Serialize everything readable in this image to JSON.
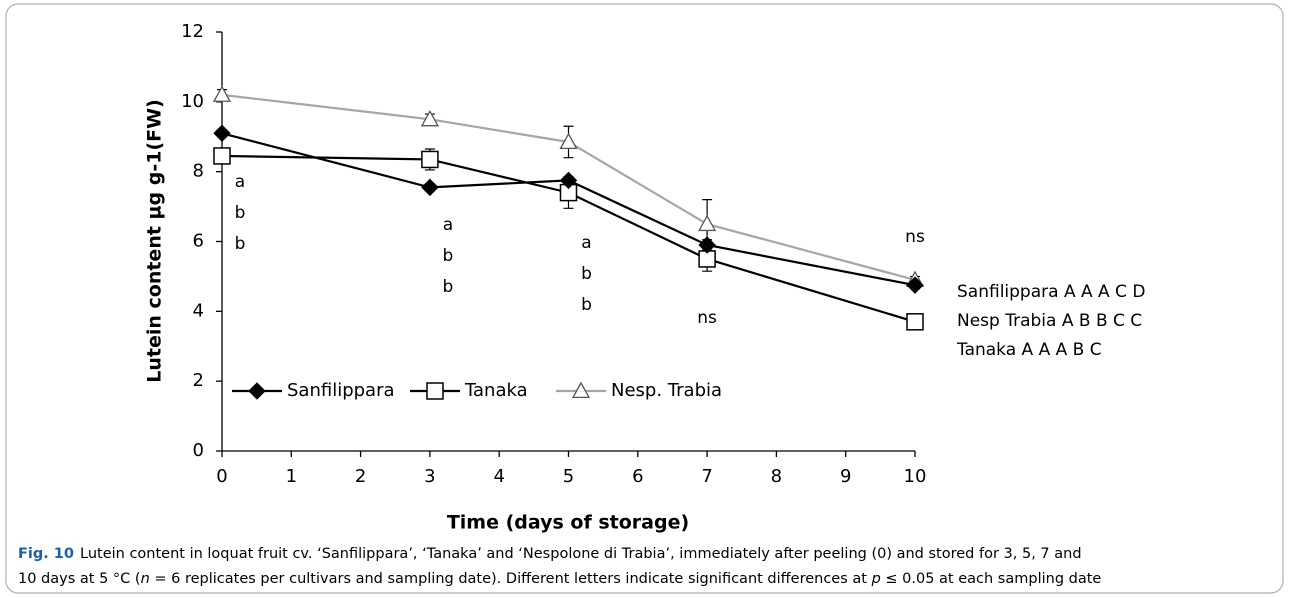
{
  "chart_data": {
    "type": "line",
    "x_label": "Time (days of storage)",
    "y_label": "Lutein content µg g-1(FW)",
    "x": [
      0,
      3,
      5,
      7,
      10
    ],
    "xlim": [
      0,
      10
    ],
    "xticks": [
      0,
      1,
      2,
      3,
      4,
      5,
      6,
      7,
      8,
      9,
      10
    ],
    "ylim": [
      0,
      12
    ],
    "yticks": [
      0,
      2,
      4,
      6,
      8,
      10,
      12
    ],
    "legend": "lower left",
    "series": [
      {
        "name": "Sanfilippara",
        "color": "#000000",
        "marker": "diamond",
        "values": [
          9.1,
          7.55,
          7.75,
          5.9,
          4.75
        ],
        "errors": [
          0.1,
          0.1,
          0.1,
          0.15,
          0.1
        ]
      },
      {
        "name": "Tanaka",
        "color": "#000000",
        "marker": "square",
        "values": [
          8.45,
          8.35,
          7.4,
          5.5,
          3.7
        ],
        "errors": [
          0.15,
          0.3,
          0.45,
          0.35,
          0.1
        ]
      },
      {
        "name": "Nesp. Trabia",
        "color": "#a6a6a6",
        "marker": "triangle",
        "values": [
          10.2,
          9.5,
          8.85,
          6.5,
          4.9
        ],
        "errors": [
          0.15,
          0.15,
          0.45,
          0.7,
          0.1
        ]
      }
    ],
    "annotations": [
      {
        "x": 0,
        "lines": [
          "a",
          "b",
          "b"
        ]
      },
      {
        "x": 3,
        "lines": [
          "a",
          "b",
          "b"
        ]
      },
      {
        "x": 5,
        "lines": [
          "a",
          "b",
          "b"
        ]
      },
      {
        "x": 7,
        "lines": [
          "ns"
        ]
      },
      {
        "x": 10,
        "lines": [
          "ns"
        ]
      }
    ],
    "side_notes": [
      "Sanfilippara A A A C D",
      "Nesp Trabia A B B C C",
      "Tanaka A A A B C"
    ]
  },
  "caption": {
    "label": "Fig. 10",
    "line1": "Lutein content in loquat fruit cv. ‘Sanfilippara’, ‘Tanaka’ and ‘Nespolone di Trabia’, immediately after peeling (0) and stored for 3, 5, 7 and",
    "line2": [
      "10 days at 5 °C (",
      "n",
      " = 6 replicates per cultivars and sampling date). Different letters indicate significant differences at ",
      "p",
      " ≤ 0.05 at each sampling date"
    ]
  }
}
